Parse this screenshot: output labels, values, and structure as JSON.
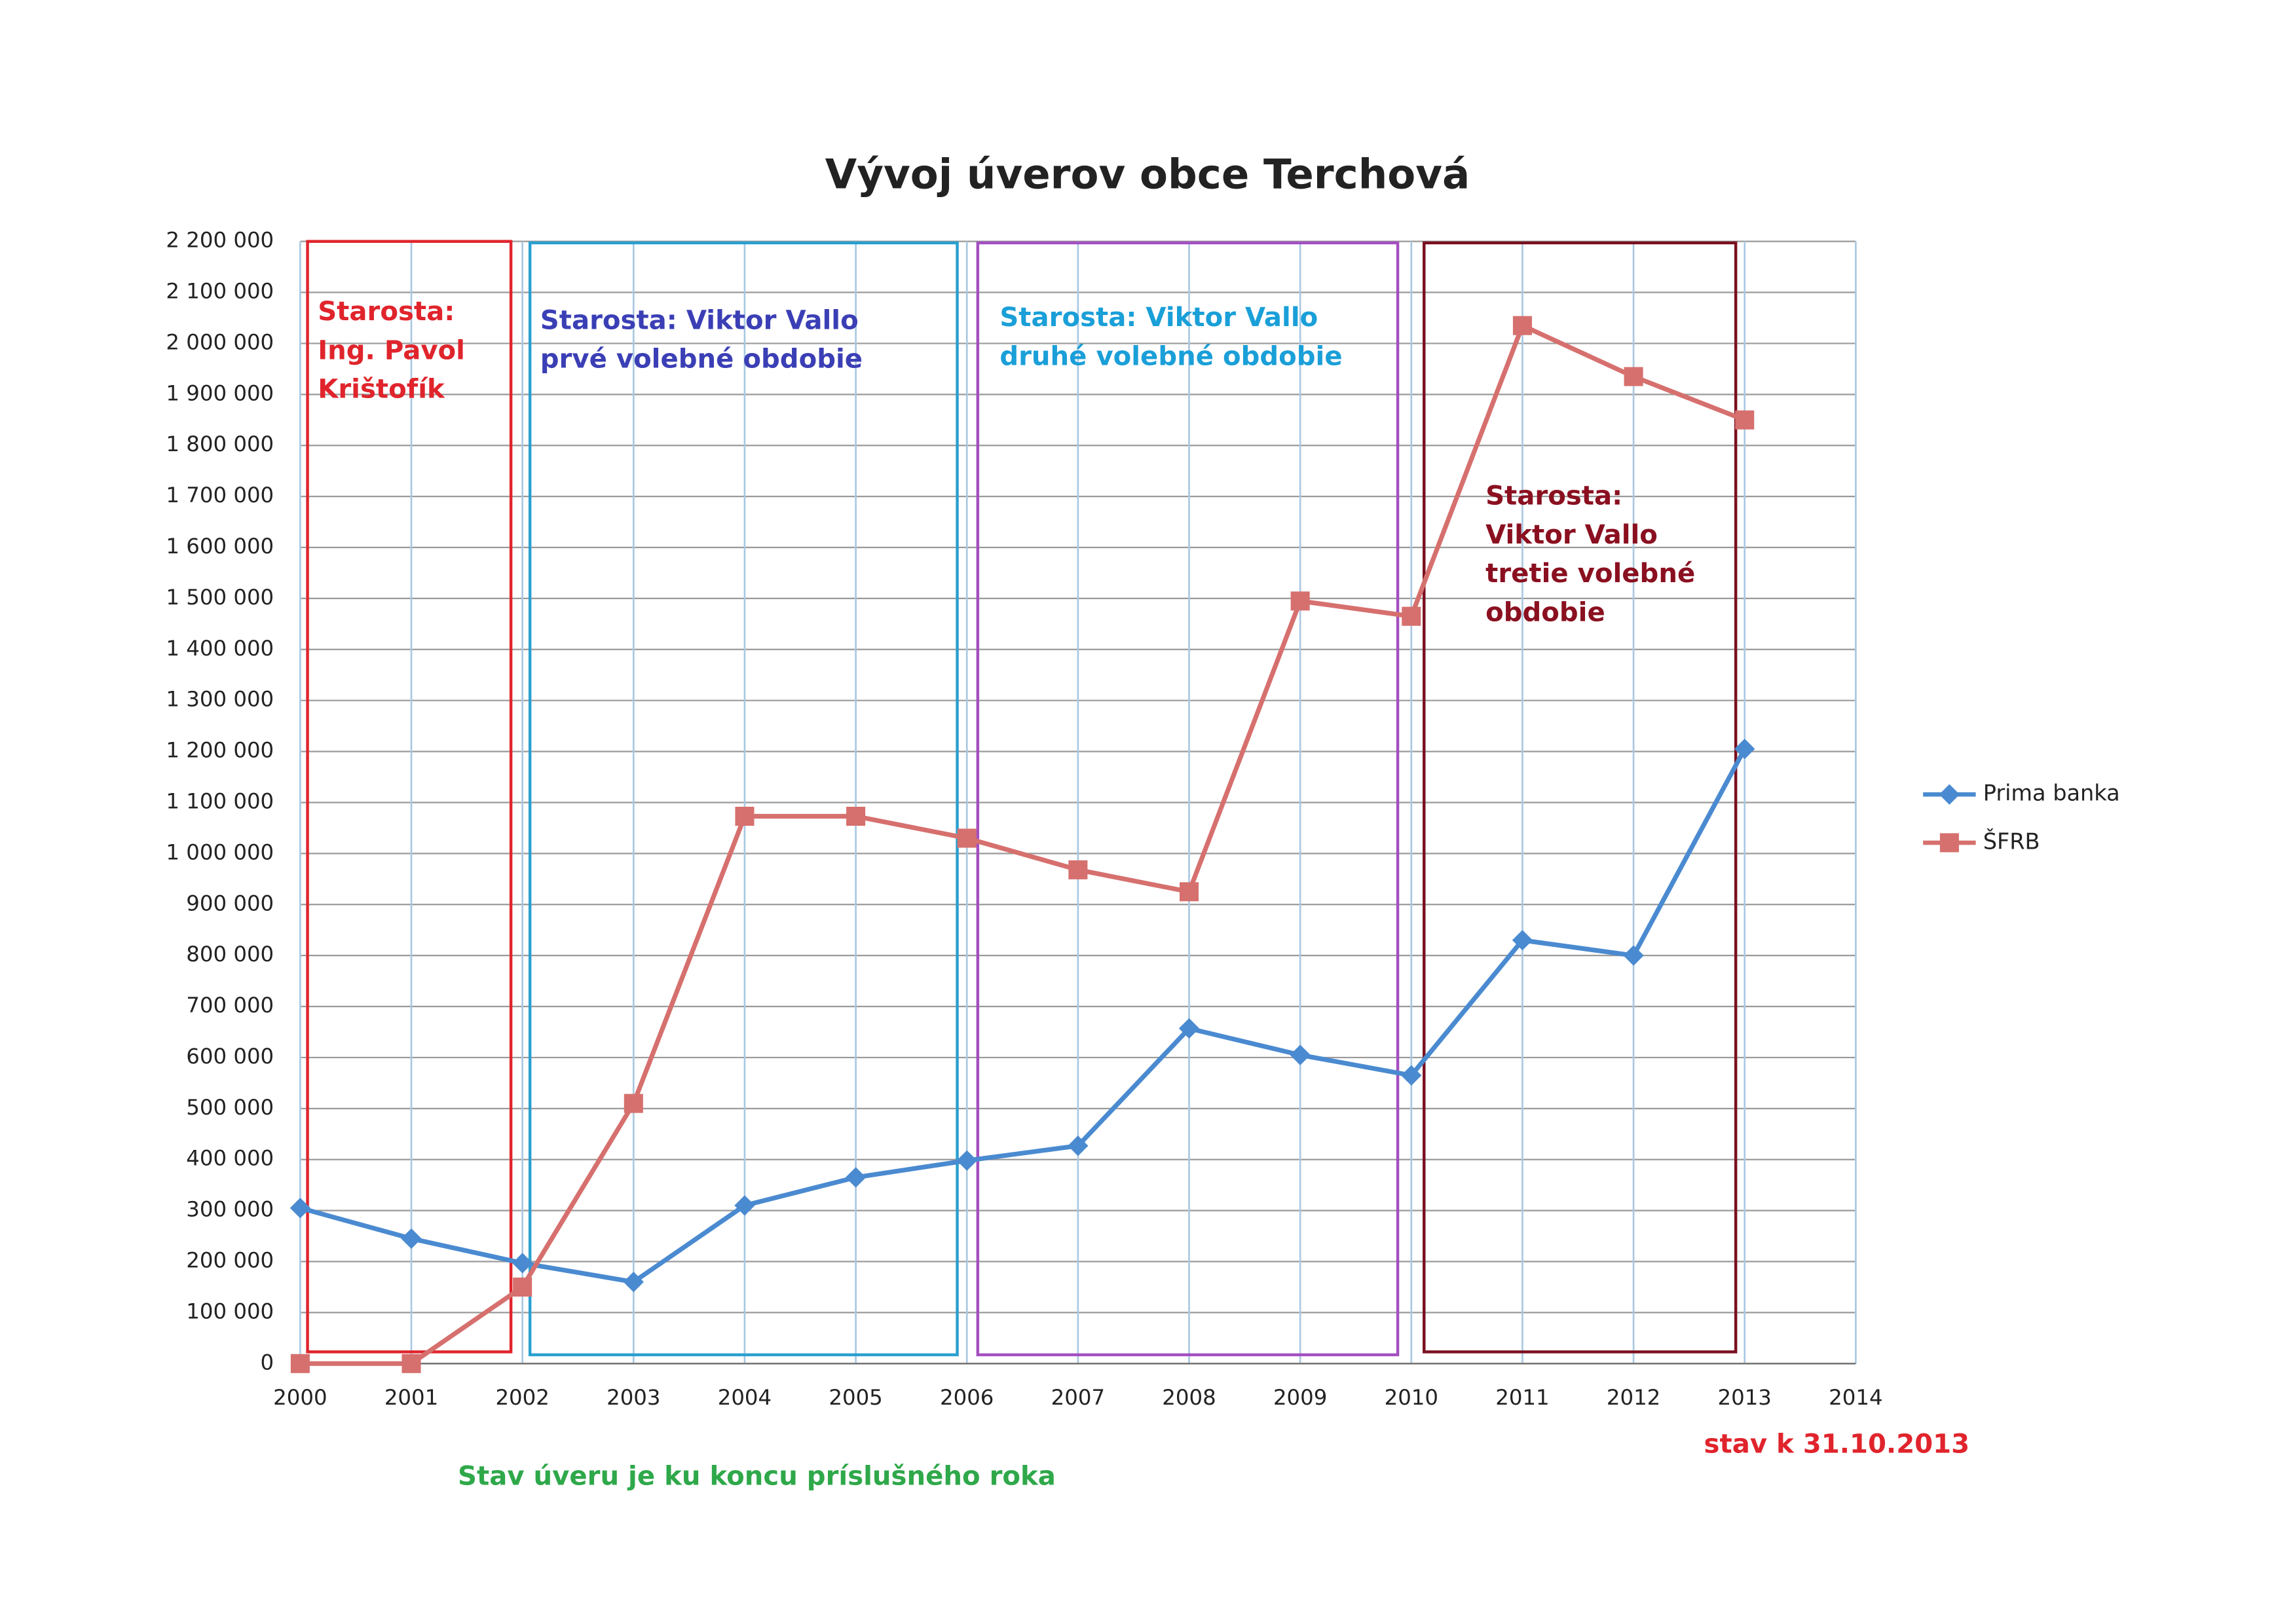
{
  "chart_data": {
    "type": "line",
    "title": "Vývoj úverov obce Terchová",
    "x": [
      2000,
      2001,
      2002,
      2003,
      2004,
      2005,
      2006,
      2007,
      2008,
      2009,
      2010,
      2011,
      2012,
      2013
    ],
    "series": [
      {
        "name": "Prima banka",
        "color": "#4a8ad0",
        "marker": "diamond",
        "values": [
          305000,
          245000,
          197000,
          160000,
          310000,
          365000,
          398000,
          427000,
          657000,
          605000,
          565000,
          830000,
          800000,
          1205000
        ]
      },
      {
        "name": "ŠFRB",
        "color": "#d6706e",
        "marker": "square",
        "values": [
          0,
          0,
          150000,
          510000,
          1073000,
          1073000,
          1030000,
          968000,
          925000,
          1495000,
          1465000,
          2035000,
          1935000,
          1850000
        ]
      }
    ],
    "xlim": [
      2000,
      2014
    ],
    "xticks": [
      2000,
      2001,
      2002,
      2003,
      2004,
      2005,
      2006,
      2007,
      2008,
      2009,
      2010,
      2011,
      2012,
      2013,
      2014
    ],
    "ylim": [
      0,
      2200000
    ],
    "yticks": [
      0,
      {
        "value": 100000,
        "label": "100 000"
      },
      {
        "value": 200000,
        "label": "200 000"
      },
      {
        "value": 300000,
        "label": "300 000"
      },
      {
        "value": 400000,
        "label": "400 000"
      },
      {
        "value": 500000,
        "label": "500 000"
      },
      {
        "value": 600000,
        "label": "600 000"
      },
      {
        "value": 700000,
        "label": "700 000"
      },
      {
        "value": 800000,
        "label": "800 000"
      },
      {
        "value": 900000,
        "label": "900 000"
      },
      {
        "value": 1000000,
        "label": "1 000 000"
      },
      {
        "value": 1100000,
        "label": "1 100 000"
      },
      {
        "value": 1200000,
        "label": "1 200 000"
      },
      {
        "value": 1300000,
        "label": "1 300 000"
      },
      {
        "value": 1400000,
        "label": "1 400 000"
      },
      {
        "value": 1500000,
        "label": "1 500 000"
      },
      {
        "value": 1600000,
        "label": "1 600 000"
      },
      {
        "value": 1700000,
        "label": "1 700 000"
      },
      {
        "value": 1800000,
        "label": "1 800 000"
      },
      {
        "value": 1900000,
        "label": "1 900 000"
      },
      {
        "value": 2000000,
        "label": "2 000 000"
      },
      {
        "value": 2100000,
        "label": "2 100 000"
      },
      {
        "value": 2200000,
        "label": "2 200 000"
      }
    ],
    "grid": true,
    "legend": "right",
    "annotations": [
      [
        "Starosta:",
        "Ing. Pavol",
        "Krištofík"
      ],
      [
        "Starosta: Viktor Vallo",
        "prvé volebné obdobie"
      ],
      [
        "Starosta: Viktor Vallo",
        "druhé volebné obdobie"
      ],
      [
        "Starosta:",
        "Viktor Vallo",
        "tretie volebné",
        "obdobie"
      ]
    ],
    "notes": [
      "Stav úveru je ku koncu príslušného roka",
      "stav k 31.10.2013"
    ]
  }
}
